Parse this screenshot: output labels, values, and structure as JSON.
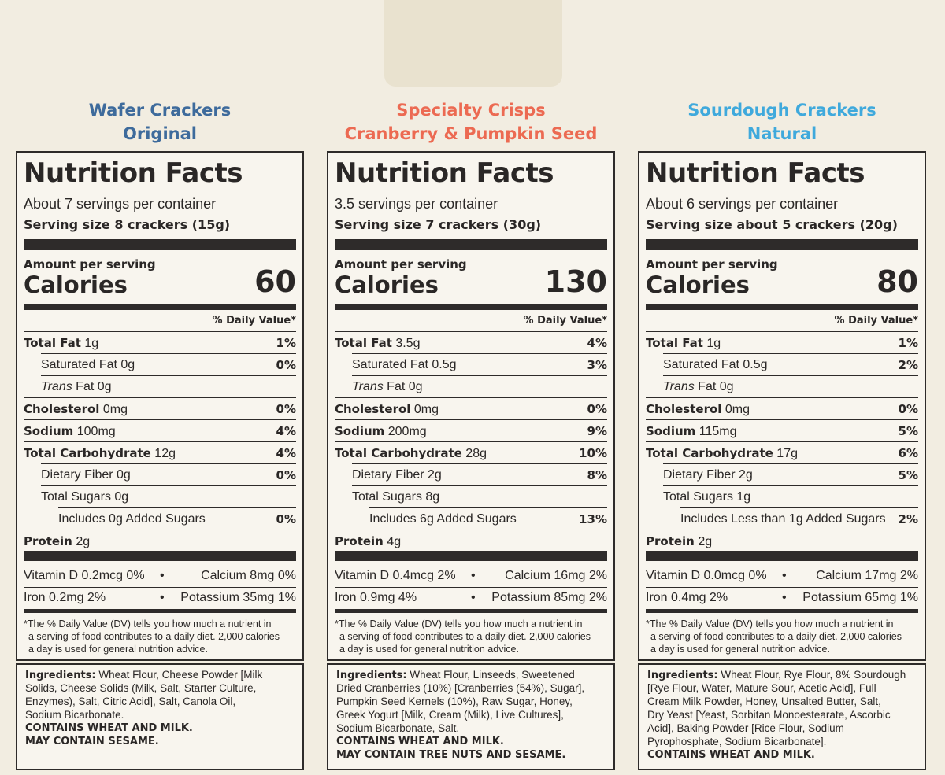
{
  "panels": [
    {
      "product": [
        "Wafer Crackers",
        "Original"
      ],
      "color": "#3e6b9c",
      "title": "Nutrition Facts",
      "servings": "About 7 servings per container",
      "serving_size": "Serving size 8 crackers (15g)",
      "amount_per_serving": "Amount per serving",
      "calories_label": "Calories",
      "calories": 60,
      "dv_header": "% Daily Value*",
      "rows": [
        {
          "label": "Total Fat",
          "amount": "1g",
          "dv": "1%",
          "bold": true,
          "indent": 0
        },
        {
          "label": "Saturated Fat",
          "amount": "0g",
          "dv": "0%",
          "bold": false,
          "indent": 1
        },
        {
          "label_italic": "Trans",
          "label": "Fat",
          "amount": "0g",
          "bold": false,
          "indent": 1
        },
        {
          "label": "Cholesterol",
          "amount": "0mg",
          "dv": "0%",
          "bold": true,
          "indent": 0
        },
        {
          "label": "Sodium",
          "amount": "100mg",
          "dv": "4%",
          "bold": true,
          "indent": 0
        },
        {
          "label": "Total Carbohydrate",
          "amount": "12g",
          "dv": "4%",
          "bold": true,
          "indent": 0
        },
        {
          "label": "Dietary Fiber",
          "amount": "0g",
          "dv": "0%",
          "bold": false,
          "indent": 1
        },
        {
          "label": "Total Sugars",
          "amount": "0g",
          "bold": false,
          "indent": 1
        },
        {
          "label": "Includes 0g Added Sugars",
          "dv": "0%",
          "bold": false,
          "indent": 2
        },
        {
          "label": "Protein",
          "amount": "2g",
          "bold": true,
          "indent": 0
        }
      ],
      "vitamins": [
        [
          "Vitamin D 0.2mcg 0%",
          "Calcium 8mg  0%"
        ],
        [
          "Iron 0.2mg 2%",
          "Potassium 35mg 1%"
        ]
      ],
      "footnote": [
        "*The % Daily Value (DV) tells you how much a nutrient in",
        "a serving of food contributes to a daily diet. 2,000 calories",
        "a day is used for general nutrition advice."
      ],
      "ingredients_label": "Ingredients:",
      "ingredients": [
        "Wheat Flour, Cheese Powder [Milk",
        "Solids, Cheese Solids (Milk, Salt, Starter Culture,",
        "Enzymes), Salt, Citric Acid], Salt, Canola Oil,",
        "Sodium Bicarbonate."
      ],
      "allergens": [
        "CONTAINS WHEAT AND MILK.",
        "MAY CONTAIN SESAME."
      ]
    },
    {
      "product": [
        "Specialty Crisps",
        "Cranberry & Pumpkin Seed"
      ],
      "color": "#ec6a52",
      "title": "Nutrition Facts",
      "servings": "3.5 servings per container",
      "serving_size": "Serving size 7 crackers (30g)",
      "amount_per_serving": "Amount per serving",
      "calories_label": "Calories",
      "calories": 130,
      "dv_header": "% Daily Value*",
      "rows": [
        {
          "label": "Total Fat",
          "amount": "3.5g",
          "dv": "4%",
          "bold": true,
          "indent": 0
        },
        {
          "label": "Saturated Fat",
          "amount": "0.5g",
          "dv": "3%",
          "bold": false,
          "indent": 1
        },
        {
          "label_italic": "Trans",
          "label": "Fat",
          "amount": "0g",
          "bold": false,
          "indent": 1
        },
        {
          "label": "Cholesterol",
          "amount": "0mg",
          "dv": "0%",
          "bold": true,
          "indent": 0
        },
        {
          "label": "Sodium",
          "amount": "200mg",
          "dv": "9%",
          "bold": true,
          "indent": 0
        },
        {
          "label": "Total Carbohydrate",
          "amount": "28g",
          "dv": "10%",
          "bold": true,
          "indent": 0
        },
        {
          "label": "Dietary Fiber",
          "amount": "2g",
          "dv": "8%",
          "bold": false,
          "indent": 1
        },
        {
          "label": "Total Sugars",
          "amount": "8g",
          "bold": false,
          "indent": 1
        },
        {
          "label": "Includes 6g Added Sugars",
          "dv": "13%",
          "bold": false,
          "indent": 2
        },
        {
          "label": "Protein",
          "amount": "4g",
          "bold": true,
          "indent": 0
        }
      ],
      "vitamins": [
        [
          "Vitamin D 0.4mcg 2%",
          "Calcium 16mg 2%"
        ],
        [
          "Iron 0.9mg 4%",
          "Potassium 85mg 2%"
        ]
      ],
      "footnote": [
        "*The % Daily Value (DV) tells you how much a nutrient in",
        "a serving of food contributes to a daily diet. 2,000 calories",
        "a day is used for general nutrition advice."
      ],
      "ingredients_label": "Ingredients:",
      "ingredients": [
        "Wheat Flour, Linseeds, Sweetened",
        "Dried Cranberries (10%) [Cranberries (54%), Sugar],",
        "Pumpkin Seed Kernels (10%), Raw Sugar, Honey,",
        "Greek Yogurt [Milk, Cream (Milk), Live Cultures],",
        "Sodium Bicarbonate, Salt."
      ],
      "allergens": [
        "CONTAINS WHEAT AND MILK.",
        "MAY CONTAIN TREE NUTS AND SESAME."
      ]
    },
    {
      "product": [
        "Sourdough Crackers",
        "Natural"
      ],
      "color": "#3fa9dc",
      "title": "Nutrition Facts",
      "servings": "About 6 servings per container",
      "serving_size": "Serving size about 5 crackers (20g)",
      "amount_per_serving": "Amount per serving",
      "calories_label": "Calories",
      "calories": 80,
      "dv_header": "% Daily Value*",
      "rows": [
        {
          "label": "Total Fat",
          "amount": "1g",
          "dv": "1%",
          "bold": true,
          "indent": 0
        },
        {
          "label": "Saturated Fat",
          "amount": "0.5g",
          "dv": "2%",
          "bold": false,
          "indent": 1
        },
        {
          "label_italic": "Trans",
          "label": "Fat",
          "amount": "0g",
          "bold": false,
          "indent": 1
        },
        {
          "label": "Cholesterol",
          "amount": "0mg",
          "dv": "0%",
          "bold": true,
          "indent": 0
        },
        {
          "label": "Sodium",
          "amount": "115mg",
          "dv": "5%",
          "bold": true,
          "indent": 0
        },
        {
          "label": "Total Carbohydrate",
          "amount": "17g",
          "dv": "6%",
          "bold": true,
          "indent": 0
        },
        {
          "label": "Dietary Fiber",
          "amount": "2g",
          "dv": "5%",
          "bold": false,
          "indent": 1
        },
        {
          "label": "Total Sugars",
          "amount": "1g",
          "bold": false,
          "indent": 1
        },
        {
          "label": "Includes Less than 1g Added Sugars",
          "dv": "2%",
          "bold": false,
          "indent": 2
        },
        {
          "label": "Protein",
          "amount": "2g",
          "bold": true,
          "indent": 0
        }
      ],
      "vitamins": [
        [
          "Vitamin D 0.0mcg 0%",
          "Calcium 17mg 2%"
        ],
        [
          "Iron 0.4mg 2%",
          "Potassium 65mg 1%"
        ]
      ],
      "footnote": [
        "*The % Daily Value (DV) tells you how much a nutrient in",
        "a serving of food contributes to a daily diet. 2,000 calories",
        "a day is used for general nutrition advice."
      ],
      "ingredients_label": "Ingredients:",
      "ingredients": [
        "Wheat Flour, Rye Flour, 8% Sourdough",
        "[Rye Flour, Water, Mature Sour, Acetic Acid], Full",
        "Cream Milk Powder, Honey, Unsalted Butter, Salt,",
        "Dry Yeast [Yeast, Sorbitan Monoestearate, Ascorbic",
        "Acid], Baking Powder [Rice Flour, Sodium",
        "Pyrophosphate, Sodium Bicarbonate]."
      ],
      "allergens": [
        "CONTAINS WHEAT AND MILK."
      ]
    }
  ]
}
